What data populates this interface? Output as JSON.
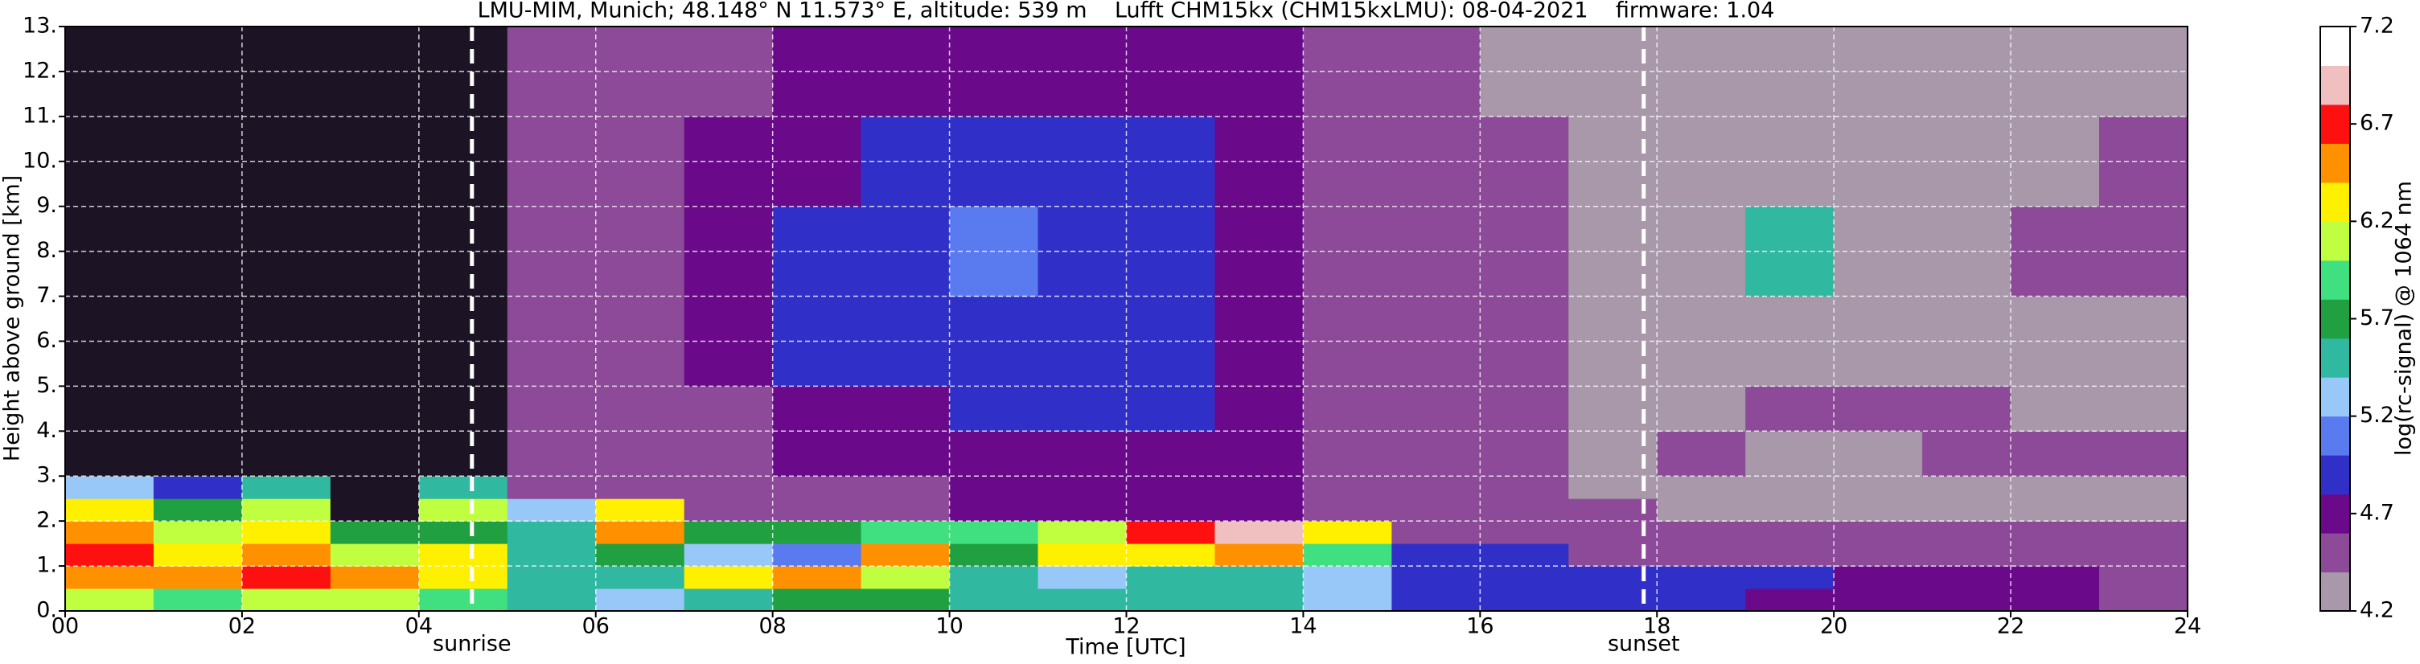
{
  "chart_data": {
    "type": "heatmap",
    "title": "LMU-MIM, Munich; 48.148° N 11.573° E, altitude: 539 m    Lufft CHM15kx (CHM15kxLMU): 08-04-2021    firmware: 1.04",
    "xlabel": "Time [UTC]",
    "ylabel": "Height above ground [km]",
    "colorbar_label": "log(rc-signal) @ 1064 nm",
    "xlim": [
      0,
      24
    ],
    "ylim": [
      0,
      13
    ],
    "xticks": [
      {
        "value": 0,
        "label": "00"
      },
      {
        "value": 2,
        "label": "02"
      },
      {
        "value": 4,
        "label": "04"
      },
      {
        "value": 6,
        "label": "06"
      },
      {
        "value": 8,
        "label": "08"
      },
      {
        "value": 10,
        "label": "10"
      },
      {
        "value": 12,
        "label": "12"
      },
      {
        "value": 14,
        "label": "14"
      },
      {
        "value": 16,
        "label": "16"
      },
      {
        "value": 18,
        "label": "18"
      },
      {
        "value": 20,
        "label": "20"
      },
      {
        "value": 22,
        "label": "22"
      },
      {
        "value": 24,
        "label": "24"
      }
    ],
    "yticks": [
      {
        "value": 0,
        "label": "0."
      },
      {
        "value": 1,
        "label": "1."
      },
      {
        "value": 2,
        "label": "2."
      },
      {
        "value": 3,
        "label": "3."
      },
      {
        "value": 4,
        "label": "4."
      },
      {
        "value": 5,
        "label": "5."
      },
      {
        "value": 6,
        "label": "6."
      },
      {
        "value": 7,
        "label": "7."
      },
      {
        "value": 8,
        "label": "8."
      },
      {
        "value": 9,
        "label": "9."
      },
      {
        "value": 10,
        "label": "10."
      },
      {
        "value": 11,
        "label": "11."
      },
      {
        "value": 12,
        "label": "12."
      },
      {
        "value": 13,
        "label": "13."
      }
    ],
    "grid": true,
    "clim": [
      4.2,
      7.2
    ],
    "cticks": [
      4.2,
      4.7,
      5.2,
      5.7,
      6.2,
      6.7,
      7.2
    ],
    "colors": [
      "#a898aa",
      "#8c4a98",
      "#6a0a8a",
      "#3030c8",
      "#5a7af0",
      "#98c8f8",
      "#30b8a0",
      "#20a040",
      "#40e080",
      "#c0ff40",
      "#fff000",
      "#ff9000",
      "#ff1010",
      "#f0c0c0",
      "#ffffff"
    ],
    "under_color": "#1c1424",
    "x_bins": [
      0,
      1,
      2,
      3,
      4,
      5,
      6,
      7,
      8,
      9,
      10,
      11,
      12,
      13,
      14,
      15,
      16,
      17,
      18,
      19,
      20,
      21,
      22,
      23,
      24
    ],
    "y_bins": [
      0,
      0.5,
      1,
      1.5,
      2,
      2.5,
      3,
      4,
      5,
      7,
      9,
      11,
      13
    ],
    "z": [
      [
        6.0,
        5.9,
        6.0,
        6.1,
        5.9,
        5.4,
        5.3,
        5.6,
        5.8,
        5.7,
        5.5,
        5.4,
        5.6,
        5.5,
        5.2,
        5.0,
        5.0,
        4.9,
        4.9,
        4.8,
        4.8,
        4.8,
        4.7,
        4.6
      ],
      [
        6.6,
        6.4,
        6.7,
        6.5,
        6.3,
        5.5,
        5.4,
        6.2,
        6.4,
        6.0,
        5.4,
        5.3,
        5.5,
        5.6,
        5.2,
        5.0,
        5.0,
        4.9,
        4.9,
        4.9,
        4.8,
        4.8,
        4.7,
        4.6
      ],
      [
        6.8,
        6.2,
        6.6,
        6.0,
        6.3,
        5.6,
        5.8,
        5.2,
        5.1,
        6.4,
        5.8,
        6.2,
        6.3,
        6.4,
        5.9,
        5.0,
        4.9,
        4.6,
        4.6,
        4.6,
        4.6,
        4.5,
        4.5,
        4.5
      ],
      [
        6.6,
        6.0,
        6.2,
        5.8,
        5.8,
        5.6,
        6.4,
        5.8,
        5.7,
        5.9,
        5.9,
        6.0,
        6.8,
        6.9,
        6.3,
        4.6,
        4.5,
        4.5,
        4.5,
        4.5,
        4.5,
        4.5,
        4.4,
        4.4
      ],
      [
        6.3,
        5.8,
        6.0,
        3.9,
        6.0,
        5.2,
        6.3,
        4.6,
        4.6,
        4.6,
        4.7,
        4.7,
        4.7,
        4.7,
        4.6,
        4.5,
        4.5,
        4.4,
        4.3,
        4.3,
        4.3,
        4.3,
        4.3,
        4.3
      ],
      [
        5.2,
        5.0,
        5.4,
        3.9,
        5.4,
        4.6,
        4.6,
        4.5,
        4.6,
        4.6,
        4.7,
        4.7,
        4.7,
        4.7,
        4.6,
        4.5,
        4.4,
        4.3,
        4.3,
        4.3,
        4.3,
        4.3,
        4.3,
        4.3
      ],
      [
        3.9,
        3.9,
        3.9,
        3.9,
        3.9,
        4.5,
        4.6,
        4.6,
        4.7,
        4.7,
        4.8,
        4.8,
        4.8,
        4.7,
        4.6,
        4.5,
        4.4,
        4.3,
        4.4,
        4.3,
        4.3,
        4.4,
        4.5,
        4.5
      ],
      [
        3.9,
        3.9,
        3.9,
        3.9,
        3.9,
        4.5,
        4.6,
        4.6,
        4.8,
        4.8,
        4.9,
        4.9,
        4.9,
        4.8,
        4.6,
        4.5,
        4.4,
        4.3,
        4.3,
        4.4,
        4.4,
        4.4,
        4.3,
        4.3
      ],
      [
        3.9,
        3.9,
        3.9,
        3.9,
        3.9,
        4.5,
        4.6,
        4.7,
        4.9,
        4.9,
        5.0,
        5.0,
        4.9,
        4.8,
        4.6,
        4.5,
        4.4,
        4.3,
        4.3,
        4.3,
        4.3,
        4.3,
        4.3,
        4.3
      ],
      [
        3.9,
        3.9,
        3.9,
        3.9,
        3.9,
        4.5,
        4.6,
        4.7,
        4.9,
        5.0,
        5.1,
        5.0,
        5.0,
        4.8,
        4.6,
        4.5,
        4.4,
        4.3,
        4.3,
        5.4,
        4.3,
        4.3,
        4.4,
        4.6
      ],
      [
        3.9,
        3.9,
        3.9,
        3.9,
        3.9,
        4.5,
        4.6,
        4.7,
        4.8,
        4.9,
        5.0,
        4.9,
        4.9,
        4.8,
        4.6,
        4.5,
        4.4,
        4.3,
        4.3,
        4.3,
        4.3,
        4.3,
        4.3,
        4.5
      ],
      [
        3.9,
        3.9,
        3.9,
        3.9,
        3.9,
        4.5,
        4.5,
        4.6,
        4.7,
        4.8,
        4.8,
        4.8,
        4.7,
        4.7,
        4.5,
        4.4,
        4.3,
        4.3,
        4.3,
        4.3,
        4.3,
        4.3,
        4.3,
        4.3
      ]
    ],
    "annotations": [
      {
        "text": "sunrise",
        "x": 4.6
      },
      {
        "text": "sunset",
        "x": 17.85
      }
    ]
  }
}
